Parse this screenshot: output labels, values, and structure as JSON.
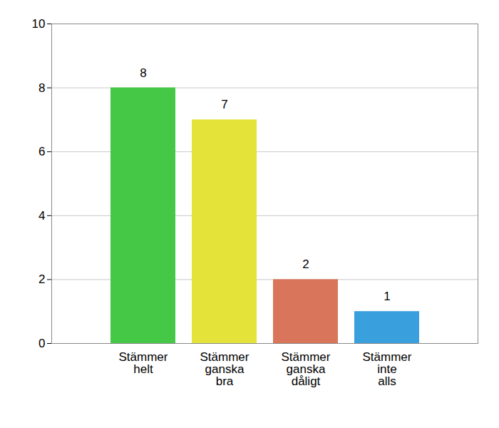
{
  "chart_data": {
    "type": "bar",
    "categories": [
      "Stämmer helt",
      "Stämmer ganska bra",
      "Stämmer ganska dåligt",
      "Stämmer inte alls"
    ],
    "values": [
      8,
      7,
      2,
      1
    ],
    "colors": [
      "#45c845",
      "#e3e33a",
      "#d9755a",
      "#3a9fdd"
    ],
    "ylim": [
      0,
      10
    ],
    "yticks": [
      0,
      2,
      4,
      6,
      8,
      10
    ],
    "grid": true,
    "data_labels": true
  }
}
